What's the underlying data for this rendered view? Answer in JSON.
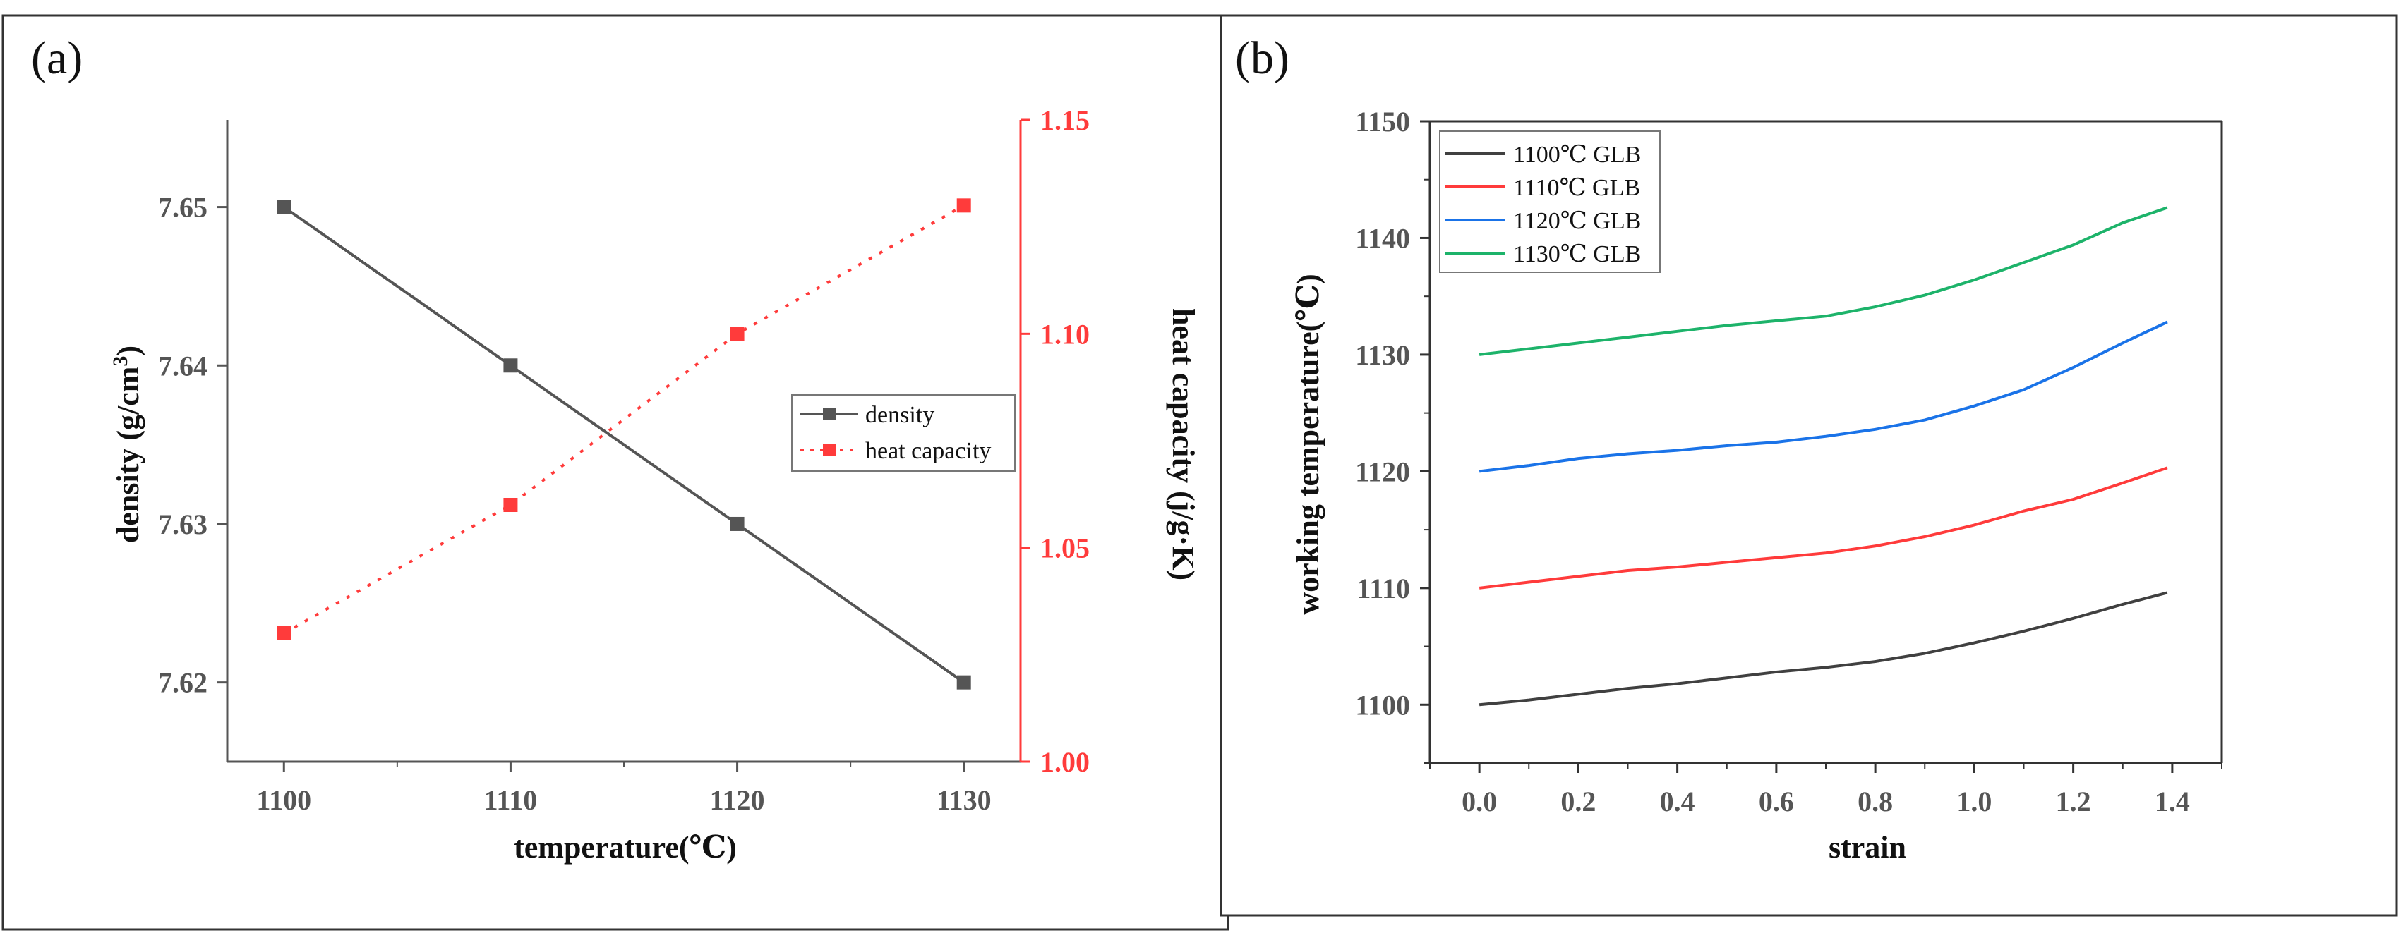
{
  "colors": {
    "density": "#555555",
    "heat_capacity": "#ff3b3b",
    "axis_red": "#ff3b3b",
    "s1100": "#404040",
    "s1110": "#ff3b3b",
    "s1120": "#1a73e8",
    "s1130": "#1db36a"
  },
  "chart_data": [
    {
      "panel_label": "(a)",
      "type": "line",
      "x": [
        1100,
        1110,
        1120,
        1130
      ],
      "xlabel": "temperature(℃)",
      "xticks": [
        1100,
        1110,
        1120,
        1130
      ],
      "xlim": [
        1097.5,
        1132.5
      ],
      "ylabel_left": "density (g/cm",
      "ylabel_left_sup": "3",
      "ylabel_left_close": ")",
      "ylim_left": [
        7.615,
        7.6555
      ],
      "yticks_left": [
        "7.62",
        "7.63",
        "7.64",
        "7.65"
      ],
      "ylabel_right": "heat capacity (j/g·K)",
      "ylim_right": [
        1.0,
        1.15
      ],
      "yticks_right": [
        "1.00",
        "1.05",
        "1.10",
        "1.15"
      ],
      "legend_position": "center-right",
      "series": [
        {
          "name": "density",
          "axis": "left",
          "style": "solid",
          "values": [
            7.65,
            7.64,
            7.63,
            7.62
          ]
        },
        {
          "name": "heat capacity",
          "axis": "right",
          "style": "dotted",
          "values": [
            1.03,
            1.06,
            1.1,
            1.13
          ]
        }
      ]
    },
    {
      "panel_label": "(b)",
      "type": "line",
      "xlabel": "strain",
      "ylabel": "working temperature(℃)",
      "xlim": [
        -0.1,
        1.5
      ],
      "ylim": [
        1095,
        1150
      ],
      "xticks": [
        "0.0",
        "0.2",
        "0.4",
        "0.6",
        "0.8",
        "1.0",
        "1.2",
        "1.4"
      ],
      "yticks": [
        "1100",
        "1110",
        "1120",
        "1130",
        "1140",
        "1150"
      ],
      "legend_position": "top-left",
      "x": [
        0.0,
        0.1,
        0.2,
        0.3,
        0.4,
        0.5,
        0.6,
        0.7,
        0.8,
        0.9,
        1.0,
        1.1,
        1.2,
        1.3,
        1.39
      ],
      "series": [
        {
          "name": "1100℃ GLB",
          "values": [
            1100.0,
            1100.4,
            1100.9,
            1101.4,
            1101.8,
            1102.3,
            1102.8,
            1103.2,
            1103.7,
            1104.4,
            1105.3,
            1106.3,
            1107.4,
            1108.6,
            1109.6
          ]
        },
        {
          "name": "1110℃ GLB",
          "values": [
            1110.0,
            1110.5,
            1111.0,
            1111.5,
            1111.8,
            1112.2,
            1112.6,
            1113.0,
            1113.6,
            1114.4,
            1115.4,
            1116.6,
            1117.6,
            1119.0,
            1120.3
          ]
        },
        {
          "name": "1120℃ GLB",
          "values": [
            1120.0,
            1120.5,
            1121.1,
            1121.5,
            1121.8,
            1122.2,
            1122.5,
            1123.0,
            1123.6,
            1124.4,
            1125.6,
            1127.0,
            1128.9,
            1131.0,
            1132.8
          ]
        },
        {
          "name": "1130℃ GLB",
          "values": [
            1130.0,
            1130.5,
            1131.0,
            1131.5,
            1132.0,
            1132.5,
            1132.9,
            1133.3,
            1134.1,
            1135.1,
            1136.4,
            1137.9,
            1139.4,
            1141.3,
            1142.6
          ]
        }
      ]
    }
  ]
}
